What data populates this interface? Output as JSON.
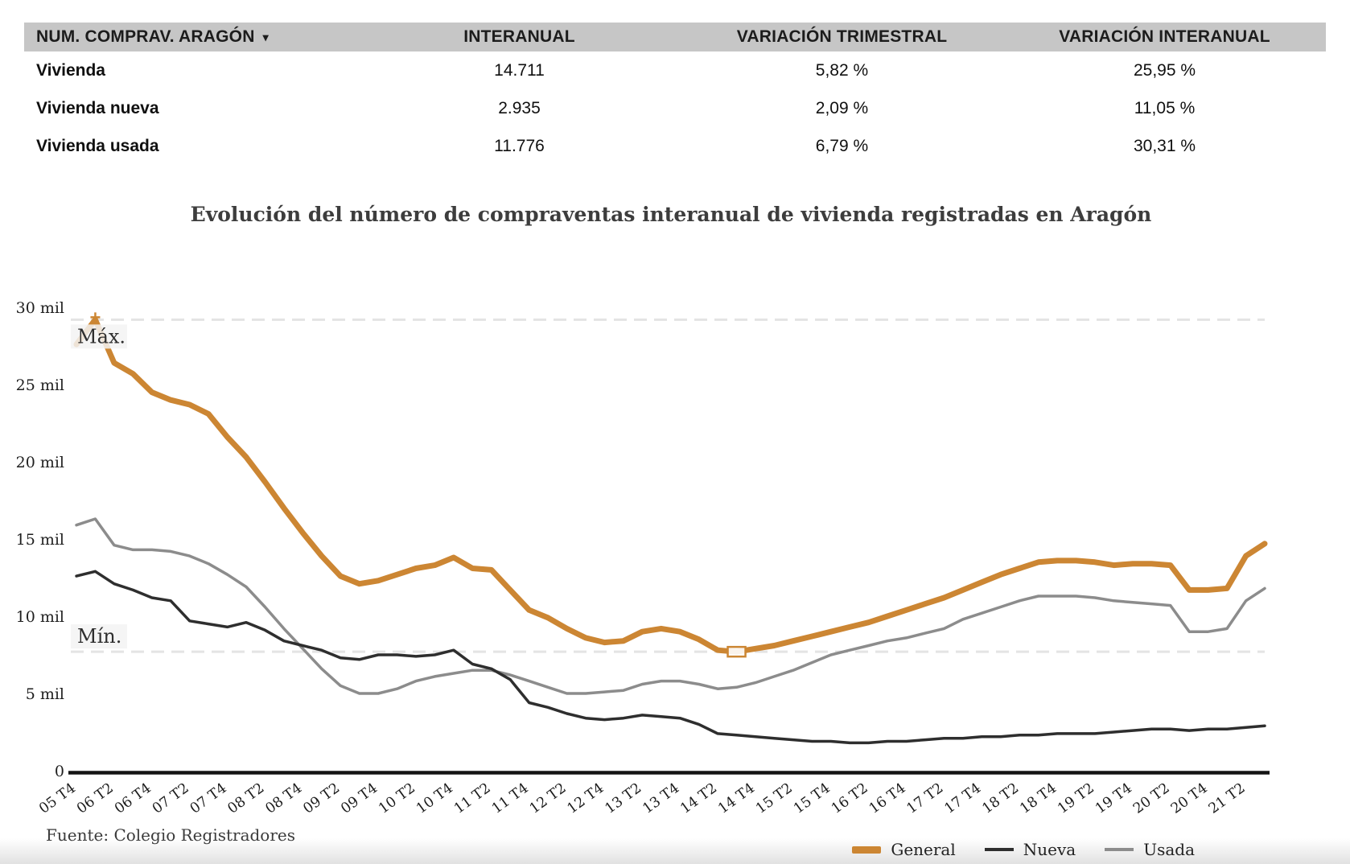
{
  "table": {
    "title": "NUM. COMPRAV. ARAGÓN",
    "sort_caret": "▾",
    "columns": [
      "INTERANUAL",
      "VARIACIÓN TRIMESTRAL",
      "VARIACIÓN INTERANUAL"
    ],
    "rows": [
      {
        "label": "Vivienda",
        "interanual": "14.711",
        "var_trimestral": "5,82 %",
        "var_interanual": "25,95 %"
      },
      {
        "label": "Vivienda nueva",
        "interanual": "2.935",
        "var_trimestral": "2,09 %",
        "var_interanual": "11,05 %"
      },
      {
        "label": "Vivienda usada",
        "interanual": "11.776",
        "var_trimestral": "6,79 %",
        "var_interanual": "30,31 %"
      }
    ]
  },
  "chart_data": {
    "type": "line",
    "title": "Evolución del número de compraventas interanual de vivienda registradas en Aragón",
    "ylim": [
      0,
      30000
    ],
    "y_ticks": [
      {
        "value": 0,
        "label": "0"
      },
      {
        "value": 5000,
        "label": "5 mil"
      },
      {
        "value": 10000,
        "label": "10 mil"
      },
      {
        "value": 15000,
        "label": "15 mil"
      },
      {
        "value": 20000,
        "label": "20 mil"
      },
      {
        "value": 25000,
        "label": "25 mil"
      },
      {
        "value": 30000,
        "label": "30 mil"
      }
    ],
    "x_tick_labels": [
      "05 T4",
      "06 T2",
      "06 T4",
      "07 T2",
      "07 T4",
      "08 T2",
      "08 T4",
      "09 T2",
      "09 T4",
      "10 T2",
      "10 T4",
      "11 T2",
      "11 T4",
      "12 T2",
      "12 T4",
      "13 T2",
      "13 T4",
      "14 T2",
      "14 T4",
      "15 T2",
      "15 T4",
      "16 T2",
      "16 T4",
      "17 T2",
      "17 T4",
      "18 T2",
      "18 T4",
      "19 T2",
      "19 T4",
      "20 T2",
      "20 T4",
      "21 T2"
    ],
    "x_points_per_label": 2,
    "reference_lines": {
      "max": {
        "label": "Máx.",
        "value": 29200
      },
      "min": {
        "label": "Mín.",
        "value": 7700
      }
    },
    "legend_position": "bottom-right",
    "series": [
      {
        "name": "General",
        "color": "#CC8633",
        "line_width": 7,
        "values": [
          27600,
          29200,
          26400,
          25700,
          24500,
          24000,
          23700,
          23100,
          21600,
          20300,
          18700,
          17000,
          15400,
          13900,
          12600,
          12100,
          12300,
          12700,
          13100,
          13300,
          13800,
          13100,
          13000,
          11700,
          10400,
          9900,
          9200,
          8600,
          8300,
          8400,
          9000,
          9200,
          9000,
          8500,
          7800,
          7700,
          7900,
          8100,
          8400,
          8700,
          9000,
          9300,
          9600,
          10000,
          10400,
          10800,
          11200,
          11700,
          12200,
          12700,
          13100,
          13500,
          13600,
          13600,
          13500,
          13300,
          13400,
          13400,
          13300,
          11700,
          11700,
          11800,
          13900,
          14700
        ]
      },
      {
        "name": "Nueva",
        "color": "#2E2E2E",
        "line_width": 3.5,
        "values": [
          12600,
          12900,
          12100,
          11700,
          11200,
          11000,
          9700,
          9500,
          9300,
          9600,
          9100,
          8400,
          8100,
          7800,
          7300,
          7200,
          7500,
          7500,
          7400,
          7500,
          7800,
          6900,
          6600,
          5900,
          4400,
          4100,
          3700,
          3400,
          3300,
          3400,
          3600,
          3500,
          3400,
          3000,
          2400,
          2300,
          2200,
          2100,
          2000,
          1900,
          1900,
          1800,
          1800,
          1900,
          1900,
          2000,
          2100,
          2100,
          2200,
          2200,
          2300,
          2300,
          2400,
          2400,
          2400,
          2500,
          2600,
          2700,
          2700,
          2600,
          2700,
          2700,
          2800,
          2900
        ]
      },
      {
        "name": "Usada",
        "color": "#8C8C8C",
        "line_width": 3.5,
        "values": [
          15900,
          16300,
          14600,
          14300,
          14300,
          14200,
          13900,
          13400,
          12700,
          11900,
          10600,
          9200,
          7900,
          6600,
          5500,
          5000,
          5000,
          5300,
          5800,
          6100,
          6300,
          6500,
          6500,
          6200,
          5800,
          5400,
          5000,
          5000,
          5100,
          5200,
          5600,
          5800,
          5800,
          5600,
          5300,
          5400,
          5700,
          6100,
          6500,
          7000,
          7500,
          7800,
          8100,
          8400,
          8600,
          8900,
          9200,
          9800,
          10200,
          10600,
          11000,
          11300,
          11300,
          11300,
          11200,
          11000,
          10900,
          10800,
          10700,
          9000,
          9000,
          9200,
          11000,
          11800
        ]
      }
    ]
  },
  "footer": {
    "source": "Fuente: Colegio Registradores"
  }
}
